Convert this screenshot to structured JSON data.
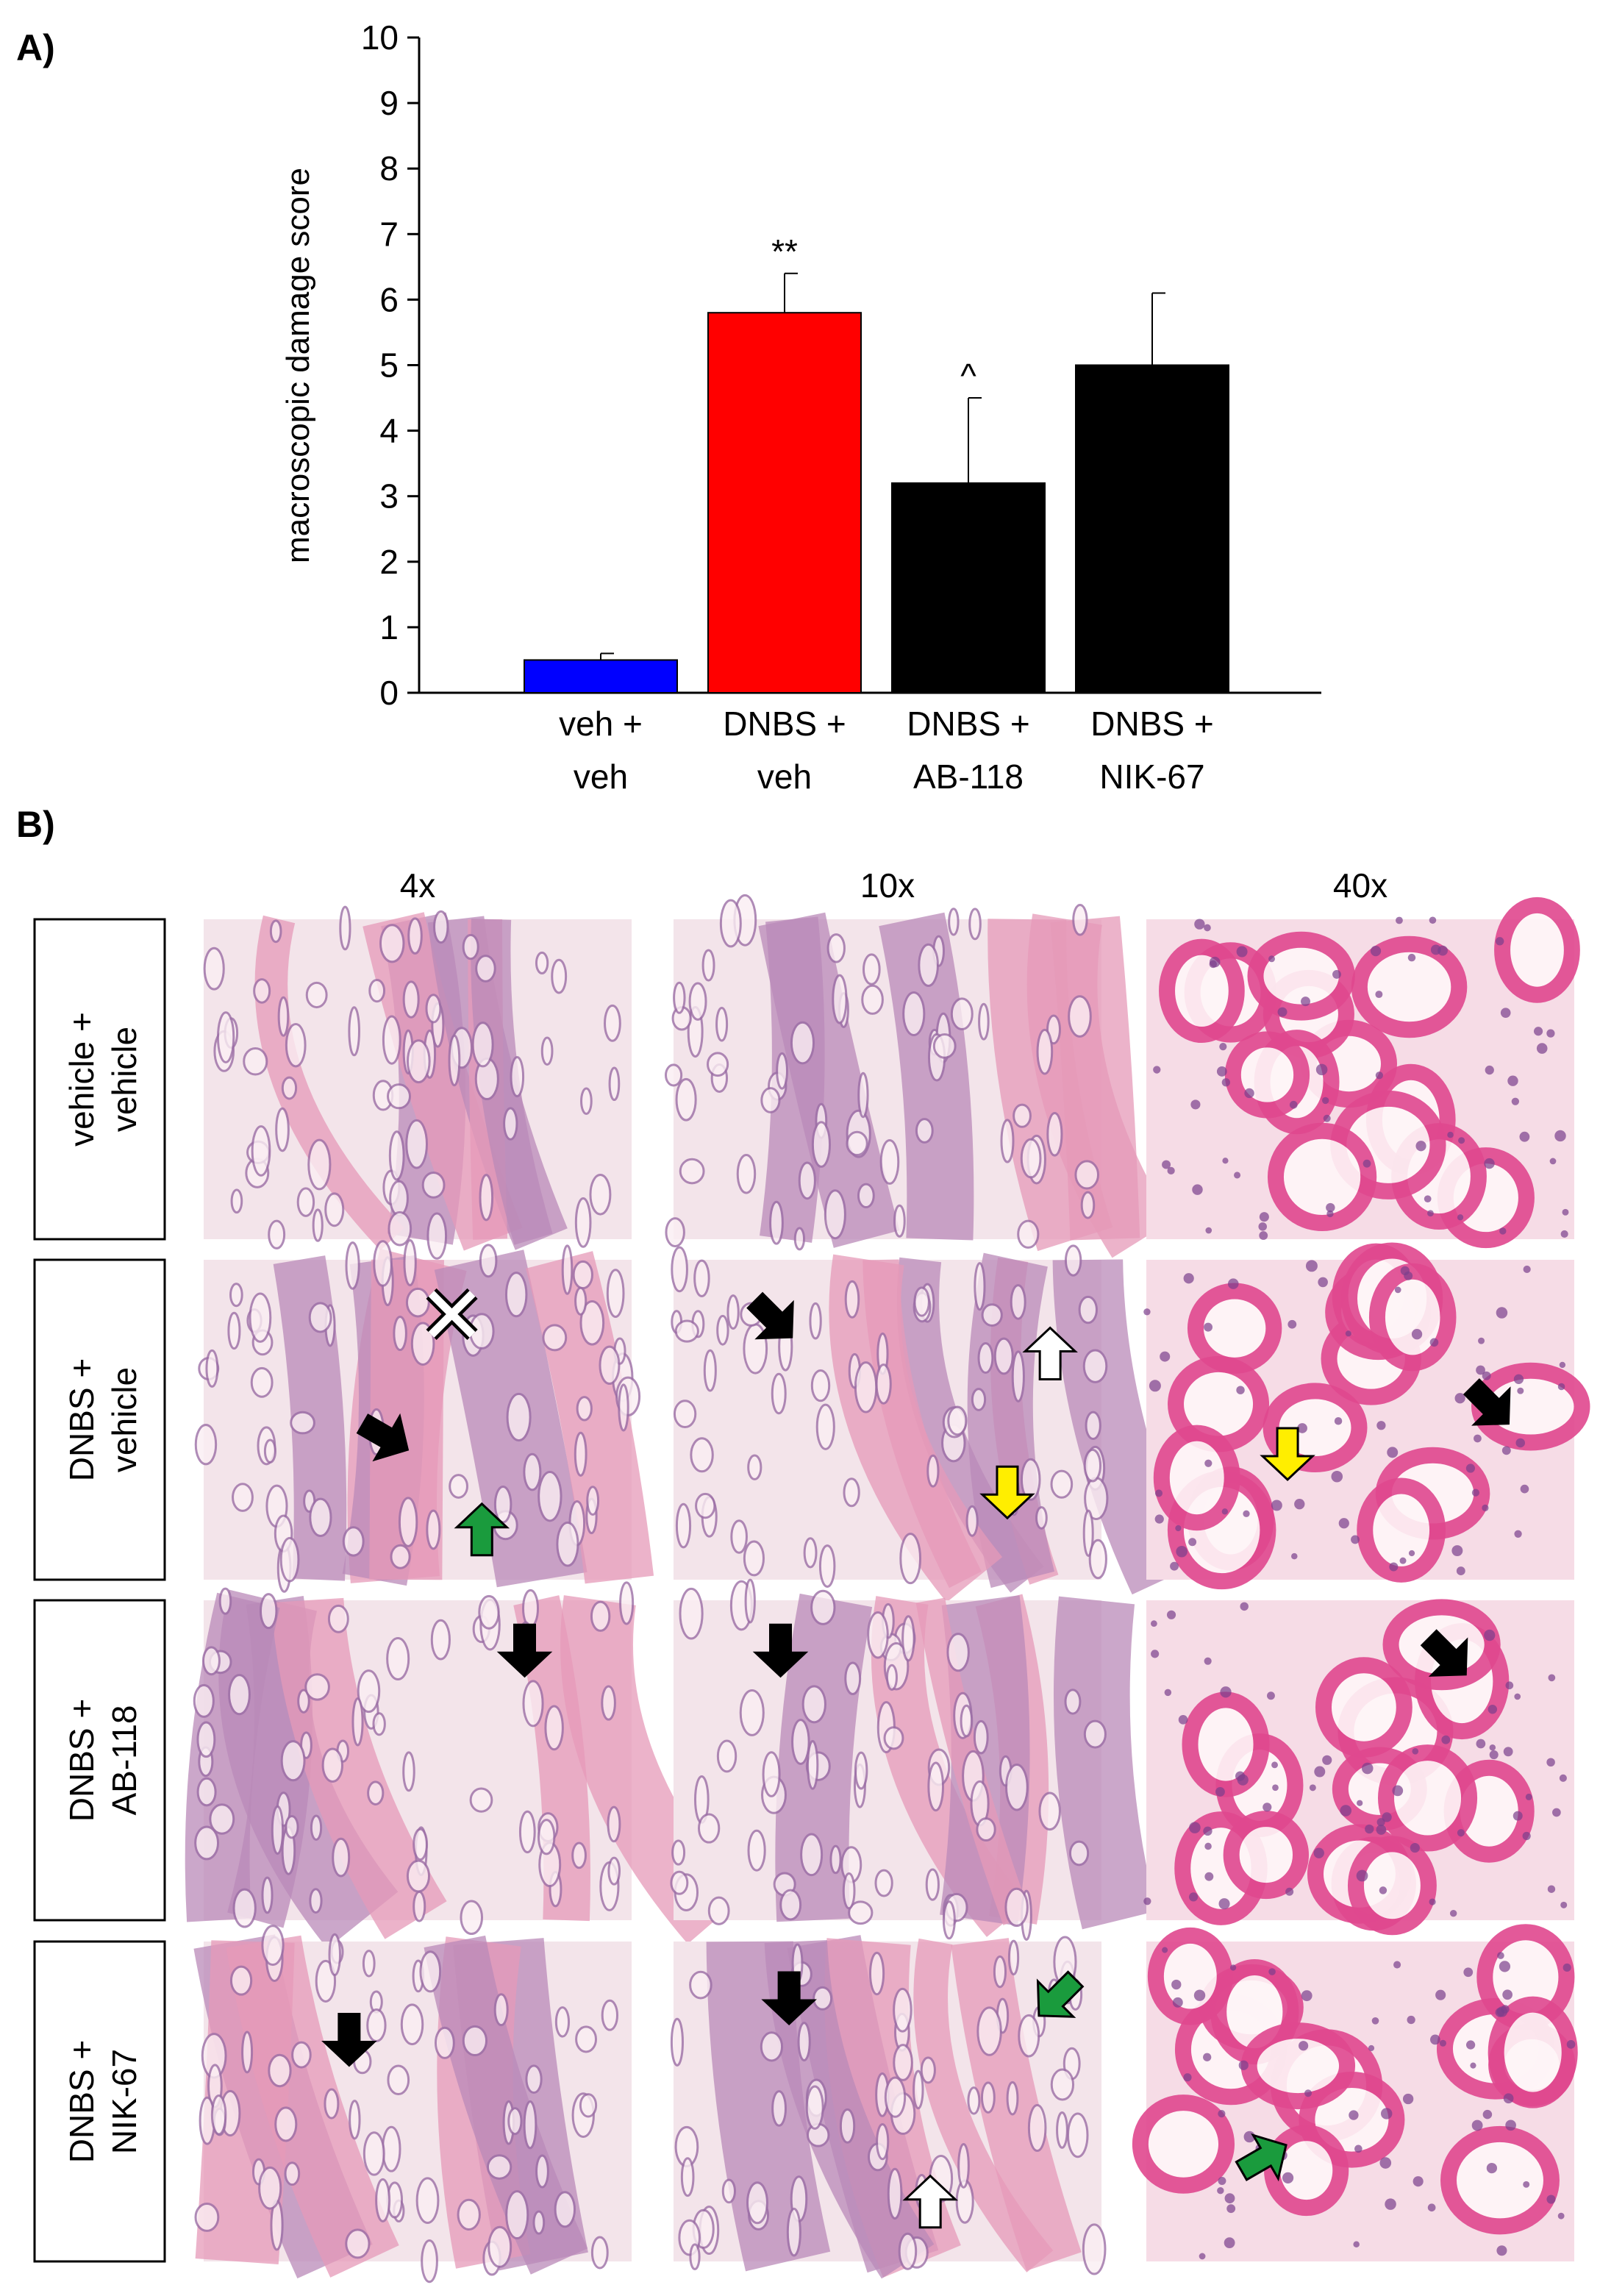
{
  "panel_a_label": "A)",
  "chart_data": {
    "type": "bar",
    "y_label": "macroscopic damage score",
    "categories": [
      [
        "veh +",
        "veh"
      ],
      [
        "DNBS +",
        "veh"
      ],
      [
        "DNBS +",
        "AB-118"
      ],
      [
        "DNBS +",
        "NIK-67"
      ]
    ],
    "values": [
      0.5,
      5.8,
      3.2,
      5.0
    ],
    "errors": [
      0.1,
      0.6,
      1.3,
      1.1
    ],
    "colors": [
      "#0000ff",
      "#ff0000",
      "#000000",
      "#000000"
    ],
    "annotations": [
      {
        "text": "**",
        "index": 1
      },
      {
        "text": "^",
        "index": 2
      }
    ],
    "ylim": [
      0,
      10
    ],
    "yticks": [
      0,
      1,
      2,
      3,
      4,
      5,
      6,
      7,
      8,
      9,
      10
    ],
    "grid": false
  },
  "panel_b": {
    "label": "B)",
    "columns": [
      "4x",
      "10x",
      "40x"
    ],
    "rows": [
      [
        "vehicle +",
        "vehicle"
      ],
      [
        "DNBS +",
        "vehicle"
      ],
      [
        "DNBS +",
        "AB-118"
      ],
      [
        "DNBS +",
        "NIK-67"
      ]
    ]
  }
}
